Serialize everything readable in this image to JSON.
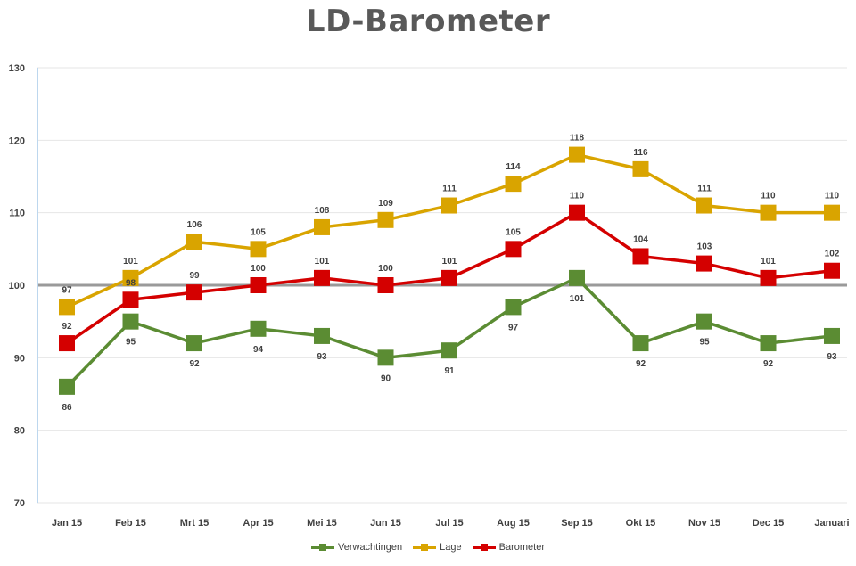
{
  "chart_data": {
    "type": "line",
    "title": "LD-Barometer",
    "xlabel": "",
    "ylabel": "",
    "categories": [
      "Jan 15",
      "Feb 15",
      "Mrt 15",
      "Apr 15",
      "Mei 15",
      "Jun 15",
      "Jul 15",
      "Aug 15",
      "Sep 15",
      "Okt 15",
      "Nov 15",
      "Dec 15",
      "Januari"
    ],
    "ylim": [
      70,
      130
    ],
    "yticks": [
      70,
      80,
      90,
      100,
      110,
      120,
      130
    ],
    "reference_line": 100,
    "grid": true,
    "legend_position": "bottom",
    "series": [
      {
        "name": "Verwachtingen",
        "color": "#5b8c33",
        "values": [
          86,
          95,
          92,
          94,
          93,
          90,
          91,
          97,
          101,
          92,
          95,
          92,
          93
        ]
      },
      {
        "name": "Lage",
        "color": "#d9a400",
        "values": [
          97,
          101,
          106,
          105,
          108,
          109,
          111,
          114,
          118,
          116,
          111,
          110,
          110
        ]
      },
      {
        "name": "Barometer",
        "color": "#d40000",
        "values": [
          92,
          98,
          99,
          100,
          101,
          100,
          101,
          105,
          110,
          104,
          103,
          101,
          102
        ]
      }
    ]
  }
}
